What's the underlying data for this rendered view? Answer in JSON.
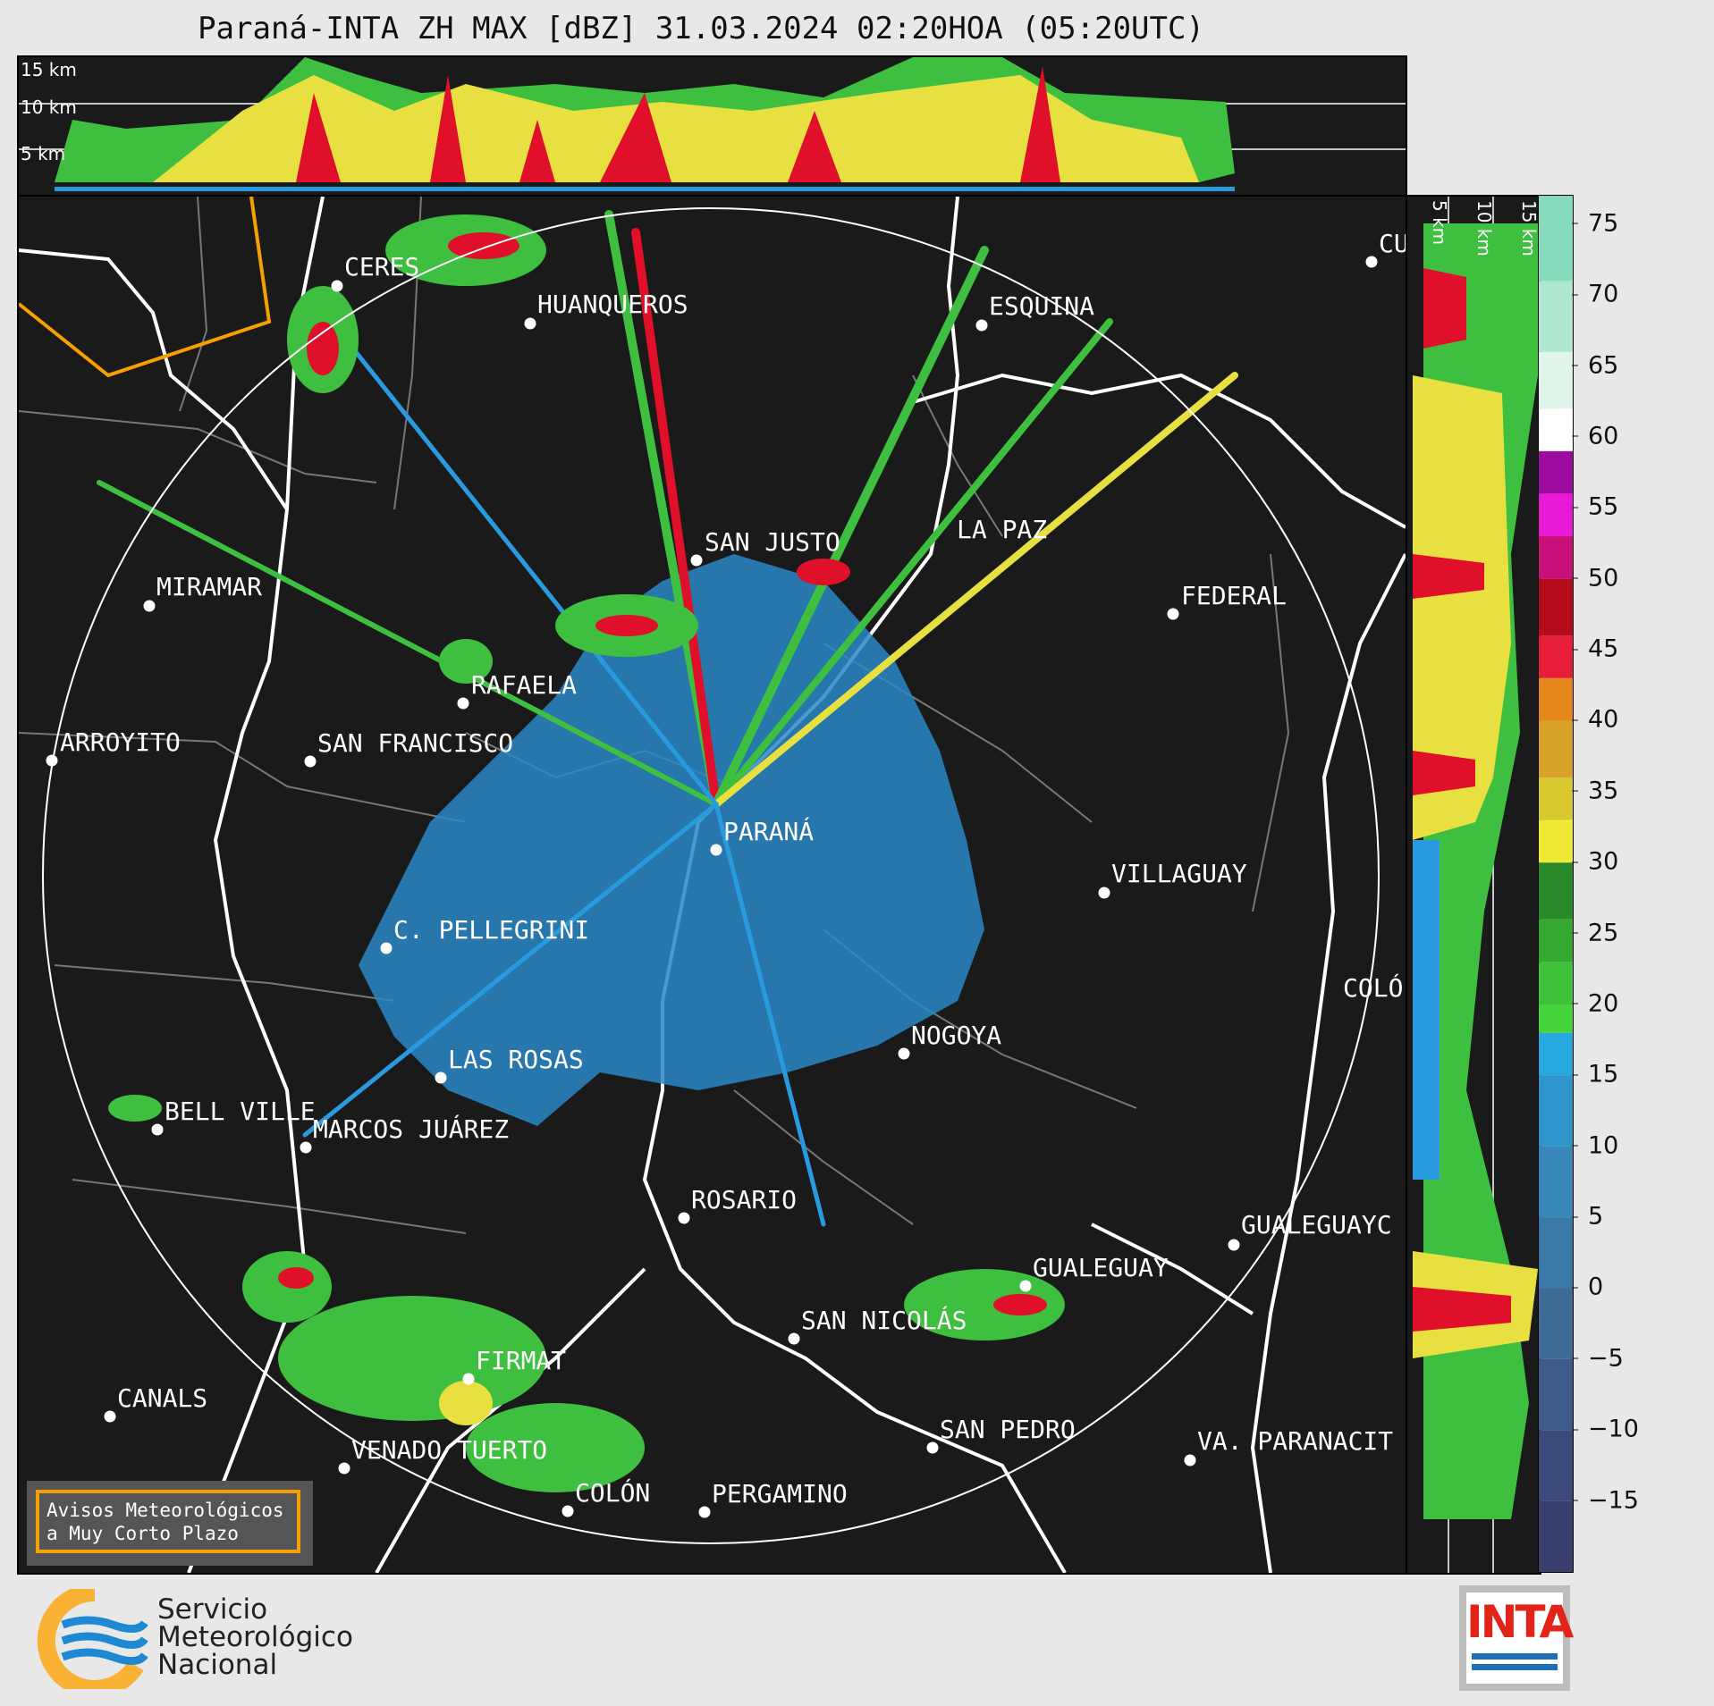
{
  "title": "Paraná-INTA ZH MAX [dBZ] 31.03.2024 02:20HOA (05:20UTC)",
  "top_panel": {
    "height_labels": [
      "15 km",
      "10 km",
      "5 km"
    ]
  },
  "right_panel": {
    "height_labels": [
      "5 km",
      "10 km",
      "15 km"
    ]
  },
  "colorbar": {
    "unit": "dBZ",
    "ticks": [
      "75",
      "70",
      "65",
      "60",
      "55",
      "50",
      "45",
      "40",
      "35",
      "30",
      "25",
      "20",
      "15",
      "10",
      "5",
      "0",
      "−5",
      "−10",
      "−15"
    ],
    "min": -20,
    "max": 77
  },
  "cities": [
    {
      "name": "CERES"
    },
    {
      "name": "HUANQUEROS"
    },
    {
      "name": "ESQUINA"
    },
    {
      "name": "CU"
    },
    {
      "name": "SAN JUSTO"
    },
    {
      "name": "LA PAZ"
    },
    {
      "name": "MIRAMAR"
    },
    {
      "name": "FEDERAL"
    },
    {
      "name": "RAFAELA"
    },
    {
      "name": "ARROYITO"
    },
    {
      "name": "SAN FRANCISCO"
    },
    {
      "name": "PARANÁ"
    },
    {
      "name": "VILLAGUAY"
    },
    {
      "name": "C. PELLEGRINI"
    },
    {
      "name": "COLÓ"
    },
    {
      "name": "NOGOYA"
    },
    {
      "name": "LAS ROSAS"
    },
    {
      "name": "BELL VILLE"
    },
    {
      "name": "MARCOS JUÁREZ"
    },
    {
      "name": "ROSARIO"
    },
    {
      "name": "GUALEGUAYC"
    },
    {
      "name": "GUALEGUAY"
    },
    {
      "name": "SAN NICOLÁS"
    },
    {
      "name": "FIRMAT"
    },
    {
      "name": "CANALS"
    },
    {
      "name": "SAN PEDRO"
    },
    {
      "name": "VENADO TUERTO"
    },
    {
      "name": "VA. PARANACIT"
    },
    {
      "name": "COLÓN"
    },
    {
      "name": "PERGAMINO"
    }
  ],
  "notice": {
    "line1": "Avisos Meteorológicos",
    "line2": "a Muy Corto Plazo"
  },
  "logos": {
    "smn": {
      "line1": "Servicio",
      "line2": "Meteorológico",
      "line3": "Nacional"
    },
    "inta": "INTA"
  }
}
